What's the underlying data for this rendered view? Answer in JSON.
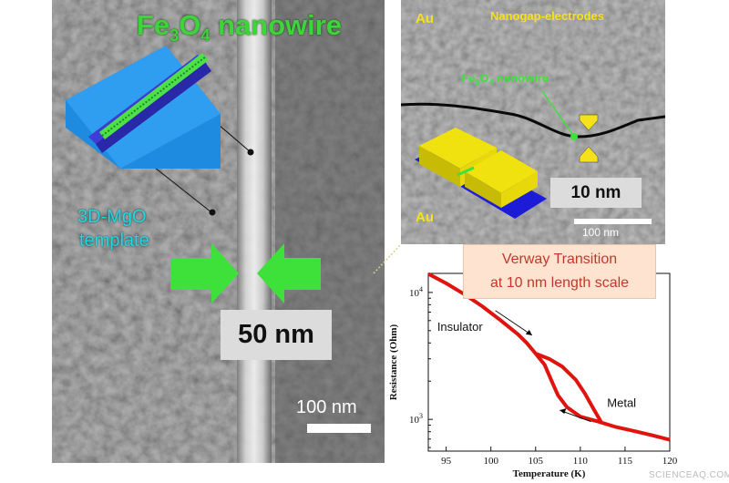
{
  "left_panel": {
    "title_prefix": "Fe",
    "title_sub1": "3",
    "title_mid": "O",
    "title_sub2": "4",
    "title_suffix": " nanowire",
    "template_line1": "3D-MgO",
    "template_line2": "template",
    "width_label": "50 nm",
    "scale_label": "100 nm"
  },
  "top_right_panel": {
    "label_au_top": "Au",
    "label_au_bottom": "Au",
    "nanogap_label": "Nanogap-electrodes",
    "nanowire_prefix": "Fe",
    "nanowire_sub1": "3",
    "nanowire_mid": "O",
    "nanowire_sub2": "4",
    "nanowire_suffix": " nanowire",
    "gap_label": "10 nm",
    "scale_label": "100 nm"
  },
  "chart_title": {
    "line1": "Verway Transition",
    "line2": "at 10 nm length scale"
  },
  "chart_data": {
    "type": "line",
    "xlabel": "Temperature (K)",
    "ylabel": "Resistance (Ohm)",
    "xlim": [
      93,
      120
    ],
    "ylim_log10": [
      2.75,
      4.15
    ],
    "xticks": [
      "95",
      "100",
      "105",
      "110",
      "115",
      "120"
    ],
    "yticks": [
      {
        "base": "10",
        "exp": "3"
      },
      {
        "base": "10",
        "exp": "4"
      }
    ],
    "scale": "log-y",
    "series": [
      {
        "points": [
          [
            93,
            14000
          ],
          [
            95,
            11800
          ],
          [
            97,
            9700
          ],
          [
            99,
            7800
          ],
          [
            101,
            6100
          ],
          [
            103,
            4700
          ],
          [
            104,
            4000
          ],
          [
            105,
            3300
          ],
          [
            106,
            2700
          ],
          [
            106.8,
            2000
          ],
          [
            107.5,
            1550
          ],
          [
            108.5,
            1250
          ],
          [
            110,
            1050
          ],
          [
            112,
            960
          ],
          [
            114,
            870
          ],
          [
            116,
            810
          ],
          [
            118,
            750
          ],
          [
            120,
            690
          ]
        ]
      },
      {
        "points": [
          [
            105,
            3300
          ],
          [
            106.5,
            3000
          ],
          [
            108,
            2600
          ],
          [
            109.5,
            2050
          ],
          [
            110.5,
            1600
          ],
          [
            111.5,
            1200
          ],
          [
            112.3,
            960
          ]
        ]
      }
    ],
    "annotations": [
      "Insulator",
      "Metal"
    ],
    "color": "#e0130f"
  },
  "watermark": "SCIENCEAQ.COM"
}
